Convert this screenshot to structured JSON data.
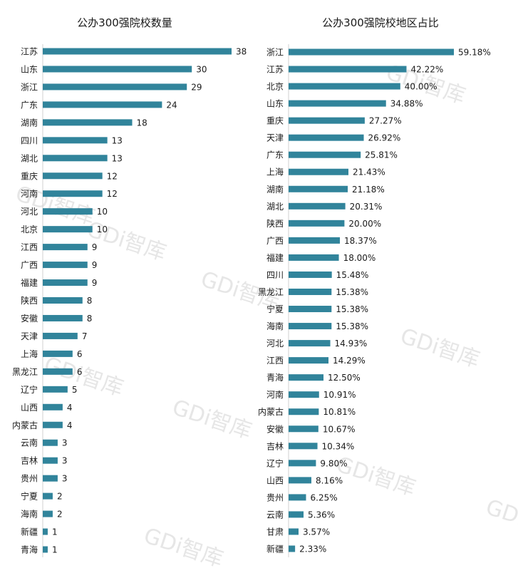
{
  "watermark": "GDi智库",
  "chart_data": [
    {
      "type": "bar",
      "orientation": "horizontal",
      "title": "公办300强院校数量",
      "categories": [
        "江苏",
        "山东",
        "浙江",
        "广东",
        "湖南",
        "四川",
        "湖北",
        "重庆",
        "河南",
        "河北",
        "北京",
        "江西",
        "广西",
        "福建",
        "陕西",
        "安徽",
        "天津",
        "上海",
        "黑龙江",
        "辽宁",
        "山西",
        "内蒙古",
        "云南",
        "吉林",
        "贵州",
        "宁夏",
        "海南",
        "新疆",
        "青海"
      ],
      "values": [
        38,
        30,
        29,
        24,
        18,
        13,
        13,
        12,
        12,
        10,
        10,
        9,
        9,
        9,
        8,
        8,
        7,
        6,
        6,
        5,
        4,
        4,
        3,
        3,
        3,
        2,
        2,
        1,
        1
      ],
      "value_labels": [
        "38",
        "30",
        "29",
        "24",
        "18",
        "13",
        "13",
        "12",
        "12",
        "10",
        "10",
        "9",
        "9",
        "9",
        "8",
        "8",
        "7",
        "6",
        "6",
        "5",
        "4",
        "4",
        "3",
        "3",
        "3",
        "2",
        "2",
        "1",
        "1"
      ],
      "color": "#31849b"
    },
    {
      "type": "bar",
      "orientation": "horizontal",
      "title": "公办300强院校地区占比",
      "categories": [
        "浙江",
        "江苏",
        "北京",
        "山东",
        "重庆",
        "天津",
        "广东",
        "上海",
        "湖南",
        "湖北",
        "陕西",
        "广西",
        "福建",
        "四川",
        "黑龙江",
        "宁夏",
        "海南",
        "河北",
        "江西",
        "青海",
        "河南",
        "内蒙古",
        "安徽",
        "吉林",
        "辽宁",
        "山西",
        "贵州",
        "云南",
        "甘肃",
        "新疆"
      ],
      "values": [
        59.18,
        42.22,
        40.0,
        34.88,
        27.27,
        26.92,
        25.81,
        21.43,
        21.18,
        20.31,
        20.0,
        18.37,
        18.0,
        15.48,
        15.38,
        15.38,
        15.38,
        14.93,
        14.29,
        12.5,
        10.91,
        10.81,
        10.67,
        10.34,
        9.8,
        8.16,
        6.25,
        5.36,
        3.57,
        2.33
      ],
      "value_labels": [
        "59.18%",
        "42.22%",
        "40.00%",
        "34.88%",
        "27.27%",
        "26.92%",
        "25.81%",
        "21.43%",
        "21.18%",
        "20.31%",
        "20.00%",
        "18.37%",
        "18.00%",
        "15.48%",
        "15.38%",
        "15.38%",
        "15.38%",
        "14.93%",
        "14.29%",
        "12.50%",
        "10.91%",
        "10.81%",
        "10.67%",
        "10.34%",
        "9.80%",
        "8.16%",
        "6.25%",
        "5.36%",
        "3.57%",
        "2.33%"
      ],
      "color": "#31849b"
    }
  ]
}
